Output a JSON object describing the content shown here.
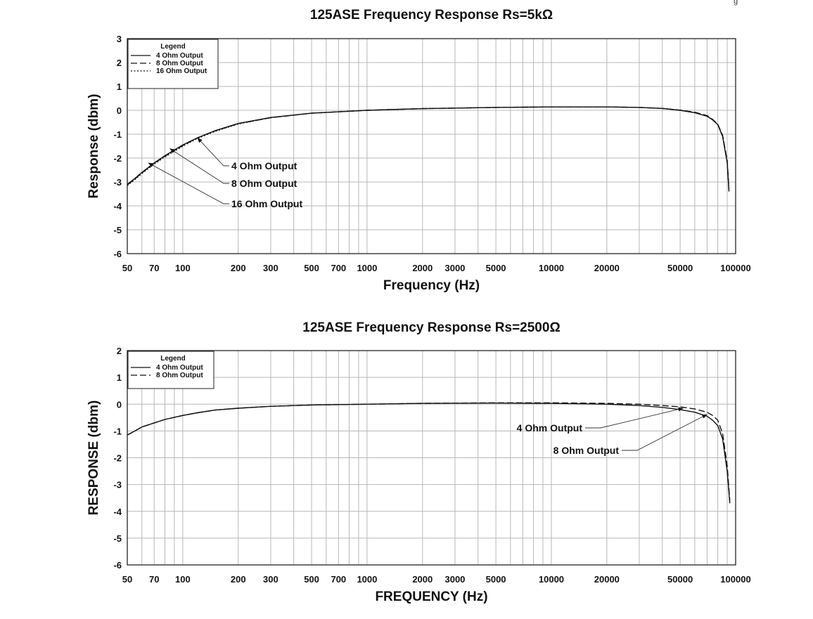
{
  "corner_mark": "g",
  "chart_data": [
    {
      "type": "line",
      "title": "125ASE Frequency Response Rs=5kΩ",
      "xlabel": "Frequency (Hz)",
      "ylabel": "Response (dbm)",
      "xscale": "log",
      "xlim": [
        50,
        100000
      ],
      "ylim": [
        -6,
        3
      ],
      "grid": true,
      "legend_position": "top-left",
      "legend_title": "Legend",
      "x_ticks": [
        {
          "value": 50,
          "label": "50"
        },
        {
          "value": 70,
          "label": "70"
        },
        {
          "value": 100,
          "label": "100"
        },
        {
          "value": 200,
          "label": "200"
        },
        {
          "value": 300,
          "label": "300"
        },
        {
          "value": 500,
          "label": "500"
        },
        {
          "value": 700,
          "label": "700"
        },
        {
          "value": 1000,
          "label": "1000"
        },
        {
          "value": 2000,
          "label": "2000"
        },
        {
          "value": 3000,
          "label": "3000"
        },
        {
          "value": 5000,
          "label": "5000"
        },
        {
          "value": 10000,
          "label": "10000"
        },
        {
          "value": 20000,
          "label": "20000"
        },
        {
          "value": 50000,
          "label": "50000"
        },
        {
          "value": 100000,
          "label": "100000"
        }
      ],
      "y_ticks": [
        {
          "value": 3,
          "label": "3"
        },
        {
          "value": 2,
          "label": "2"
        },
        {
          "value": 1,
          "label": "1"
        },
        {
          "value": 0,
          "label": "0"
        },
        {
          "value": -1,
          "label": "-1"
        },
        {
          "value": -2,
          "label": "-2"
        },
        {
          "value": -3,
          "label": "-3"
        },
        {
          "value": -4,
          "label": "-4"
        },
        {
          "value": -5,
          "label": "-5"
        },
        {
          "value": -6,
          "label": "-6"
        }
      ],
      "series": [
        {
          "name": "4 Ohm Output",
          "dash": "solid",
          "x": [
            50,
            55,
            60,
            70,
            80,
            100,
            120,
            150,
            200,
            300,
            500,
            1000,
            2000,
            5000,
            10000,
            20000,
            30000,
            40000,
            50000,
            60000,
            70000,
            75000,
            80000,
            85000,
            90000,
            92000
          ],
          "y": [
            -3.1,
            -2.85,
            -2.6,
            -2.2,
            -1.9,
            -1.45,
            -1.15,
            -0.85,
            -0.55,
            -0.3,
            -0.12,
            0.0,
            0.07,
            0.12,
            0.14,
            0.14,
            0.12,
            0.08,
            0.0,
            -0.1,
            -0.25,
            -0.4,
            -0.6,
            -1.1,
            -2.2,
            -3.4
          ]
        },
        {
          "name": "8 Ohm Output",
          "dash": "dashed",
          "x": [
            50,
            55,
            60,
            70,
            80,
            100,
            120,
            150,
            200,
            300,
            500,
            1000,
            2000,
            5000,
            10000,
            20000,
            30000,
            40000,
            50000,
            60000,
            70000,
            75000,
            80000,
            85000,
            90000,
            92000
          ],
          "y": [
            -3.12,
            -2.87,
            -2.62,
            -2.22,
            -1.92,
            -1.47,
            -1.16,
            -0.86,
            -0.56,
            -0.31,
            -0.12,
            0.0,
            0.07,
            0.12,
            0.14,
            0.14,
            0.12,
            0.08,
            0.01,
            -0.08,
            -0.22,
            -0.38,
            -0.58,
            -1.05,
            -2.1,
            -3.3
          ]
        },
        {
          "name": "16 Ohm Output",
          "dash": "dotted",
          "x": [
            50,
            55,
            60,
            70,
            80,
            100,
            120,
            150,
            200,
            300,
            500,
            1000,
            2000,
            5000,
            10000,
            20000,
            30000,
            40000,
            50000,
            60000,
            70000,
            75000,
            80000,
            85000,
            90000,
            92000
          ],
          "y": [
            -3.15,
            -2.9,
            -2.65,
            -2.25,
            -1.95,
            -1.5,
            -1.18,
            -0.88,
            -0.57,
            -0.31,
            -0.12,
            0.0,
            0.07,
            0.12,
            0.14,
            0.14,
            0.12,
            0.08,
            0.0,
            -0.1,
            -0.24,
            -0.4,
            -0.6,
            -1.08,
            -2.15,
            -3.35
          ]
        }
      ],
      "annotations": [
        {
          "text": "4 Ohm Output",
          "x": 120,
          "y": -1.15
        },
        {
          "text": "8 Ohm Output",
          "x": 85,
          "y": -1.6
        },
        {
          "text": "16 Ohm Output",
          "x": 65,
          "y": -2.2
        }
      ]
    },
    {
      "type": "line",
      "title": "125ASE Frequency Response Rs=2500Ω",
      "xlabel": "FREQUENCY (Hz)",
      "ylabel": "RESPONSE (dbm)",
      "xscale": "log",
      "xlim": [
        50,
        100000
      ],
      "ylim": [
        -6,
        2
      ],
      "grid": true,
      "legend_position": "top-left",
      "legend_title": "Legend",
      "x_ticks": [
        {
          "value": 50,
          "label": "50"
        },
        {
          "value": 70,
          "label": "70"
        },
        {
          "value": 100,
          "label": "100"
        },
        {
          "value": 200,
          "label": "200"
        },
        {
          "value": 300,
          "label": "300"
        },
        {
          "value": 500,
          "label": "500"
        },
        {
          "value": 700,
          "label": "700"
        },
        {
          "value": 1000,
          "label": "1000"
        },
        {
          "value": 2000,
          "label": "2000"
        },
        {
          "value": 3000,
          "label": "3000"
        },
        {
          "value": 5000,
          "label": "5000"
        },
        {
          "value": 10000,
          "label": "10000"
        },
        {
          "value": 20000,
          "label": "20000"
        },
        {
          "value": 50000,
          "label": "50000"
        },
        {
          "value": 100000,
          "label": "100000"
        }
      ],
      "y_ticks": [
        {
          "value": 2,
          "label": "2"
        },
        {
          "value": 1,
          "label": "1"
        },
        {
          "value": 0,
          "label": "0"
        },
        {
          "value": -1,
          "label": "-1"
        },
        {
          "value": -2,
          "label": "-2"
        },
        {
          "value": -3,
          "label": "-3"
        },
        {
          "value": -4,
          "label": "-4"
        },
        {
          "value": -5,
          "label": "-5"
        },
        {
          "value": -6,
          "label": "-6"
        }
      ],
      "series": [
        {
          "name": "4 Ohm Output",
          "dash": "solid",
          "x": [
            50,
            55,
            60,
            70,
            80,
            100,
            120,
            150,
            200,
            300,
            500,
            1000,
            2000,
            5000,
            10000,
            20000,
            30000,
            40000,
            50000,
            60000,
            70000,
            75000,
            80000,
            85000,
            90000,
            93000
          ],
          "y": [
            -1.15,
            -1.0,
            -0.85,
            -0.7,
            -0.57,
            -0.42,
            -0.32,
            -0.22,
            -0.15,
            -0.08,
            -0.03,
            0.0,
            0.03,
            0.04,
            0.03,
            0.0,
            -0.05,
            -0.12,
            -0.2,
            -0.3,
            -0.45,
            -0.6,
            -0.8,
            -1.3,
            -2.5,
            -3.7
          ]
        },
        {
          "name": "8 Ohm Output",
          "dash": "dashed",
          "x": [
            50,
            55,
            60,
            70,
            80,
            100,
            120,
            150,
            200,
            300,
            500,
            1000,
            2000,
            5000,
            10000,
            20000,
            30000,
            40000,
            50000,
            60000,
            70000,
            75000,
            80000,
            85000,
            90000,
            93000
          ],
          "y": [
            -1.15,
            -1.0,
            -0.85,
            -0.7,
            -0.57,
            -0.42,
            -0.32,
            -0.22,
            -0.15,
            -0.08,
            -0.03,
            0.0,
            0.03,
            0.05,
            0.05,
            0.03,
            0.0,
            -0.05,
            -0.1,
            -0.18,
            -0.3,
            -0.42,
            -0.6,
            -1.1,
            -2.3,
            -3.6
          ]
        }
      ],
      "annotations": [
        {
          "text": "4 Ohm Output",
          "x": 52000,
          "y": -0.15
        },
        {
          "text": "8 Ohm Output",
          "x": 70000,
          "y": -0.38
        }
      ]
    }
  ]
}
